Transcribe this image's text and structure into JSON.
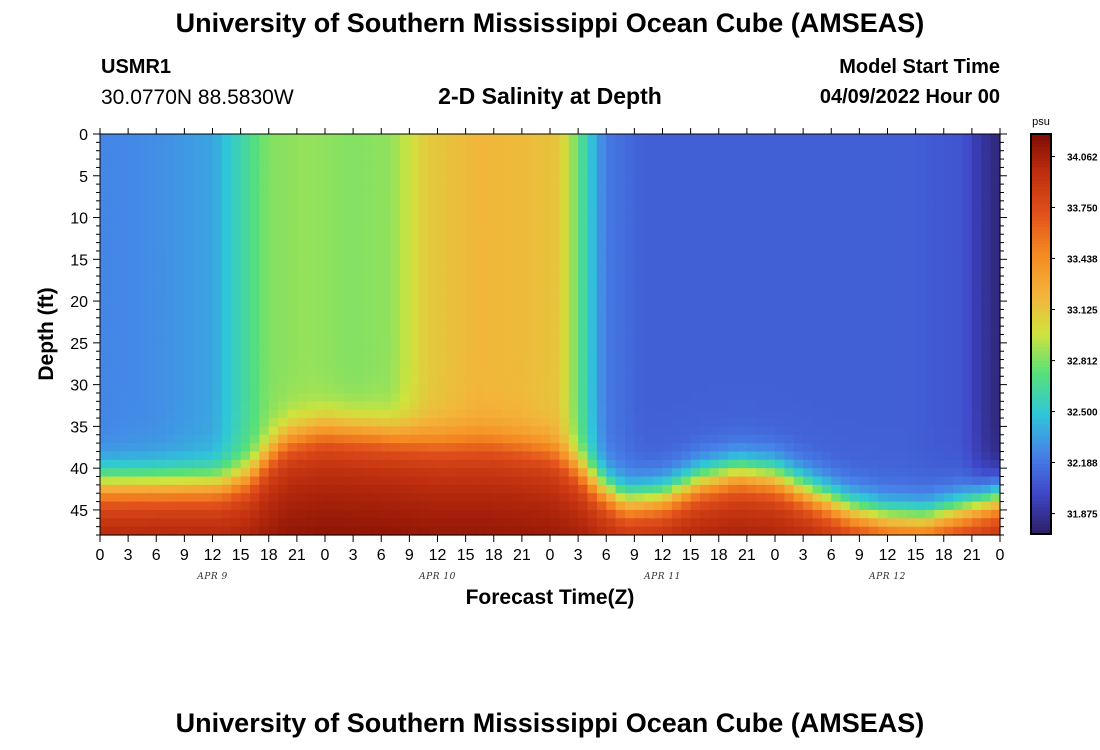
{
  "header": {
    "title": "University of Southern Mississippi Ocean Cube (AMSEAS)",
    "station_name": "USMR1",
    "coordinates": "30.0770N  88.5830W",
    "subtitle": "2-D Salinity at Depth",
    "model_start_label": "Model Start Time",
    "model_start_value": "04/09/2022 Hour 00"
  },
  "footer": {
    "title": "University of Southern Mississippi Ocean Cube (AMSEAS)"
  },
  "colors": {
    "colormap": [
      "#2b1e63",
      "#3f47c9",
      "#4682e8",
      "#2fc7d8",
      "#56e07a",
      "#cfe33d",
      "#f4b23a",
      "#f58a22",
      "#e2511b",
      "#c0300f",
      "#7e0b02"
    ]
  },
  "chart_data": {
    "type": "heatmap",
    "title": "2-D Salinity at Depth",
    "xlabel": "Forecast Time(Z)",
    "ylabel": "Depth (ft)",
    "x_tick_labels": [
      "0",
      "3",
      "6",
      "9",
      "12",
      "15",
      "18",
      "21",
      "0",
      "3",
      "6",
      "9",
      "12",
      "15",
      "18",
      "21",
      "0",
      "3",
      "6",
      "9",
      "12",
      "15",
      "18",
      "21",
      "0",
      "3",
      "6",
      "9",
      "12",
      "15",
      "18",
      "21",
      "0"
    ],
    "x_range_hours": [
      0,
      96
    ],
    "day_labels": [
      {
        "label": "APR 9",
        "hour": 12
      },
      {
        "label": "APR 10",
        "hour": 36
      },
      {
        "label": "APR 11",
        "hour": 60
      },
      {
        "label": "APR 12",
        "hour": 84
      }
    ],
    "y_ticks": [
      0,
      5,
      10,
      15,
      20,
      25,
      30,
      35,
      40,
      45
    ],
    "y_range_ft": [
      0,
      48
    ],
    "colorbar": {
      "unit": "psu",
      "ticks": [
        "34.062",
        "33.750",
        "33.438",
        "33.125",
        "32.812",
        "32.500",
        "32.188",
        "31.875"
      ],
      "range": [
        31.75,
        34.2
      ]
    },
    "surface_salinity_profile": {
      "hours": [
        0,
        6,
        12,
        15,
        18,
        22,
        27,
        31,
        35,
        40,
        45,
        49,
        51,
        52.5,
        54,
        58,
        66,
        72,
        78,
        82,
        86,
        92,
        94,
        96
      ],
      "values": [
        32.25,
        32.28,
        32.36,
        32.6,
        32.82,
        32.86,
        32.82,
        32.85,
        33.1,
        33.2,
        33.18,
        33.12,
        32.75,
        32.45,
        32.2,
        32.1,
        32.1,
        32.1,
        32.1,
        32.1,
        32.1,
        32.05,
        31.9,
        31.8
      ]
    },
    "bottom_layer_salinity_psu": 33.95,
    "interface_depth_profile": {
      "hours": [
        0,
        8,
        13,
        16,
        18,
        20,
        24,
        30,
        36,
        42,
        48,
        51,
        53,
        56,
        60,
        64,
        68,
        72,
        76,
        80,
        84,
        88,
        92,
        96
      ],
      "depth_ft": [
        42,
        42,
        42,
        41,
        38.5,
        36.5,
        35.5,
        36,
        37,
        37,
        38,
        40,
        42,
        44,
        43.5,
        41.5,
        40.5,
        41,
        43,
        45,
        46,
        46.2,
        45,
        43.5
      ]
    }
  }
}
